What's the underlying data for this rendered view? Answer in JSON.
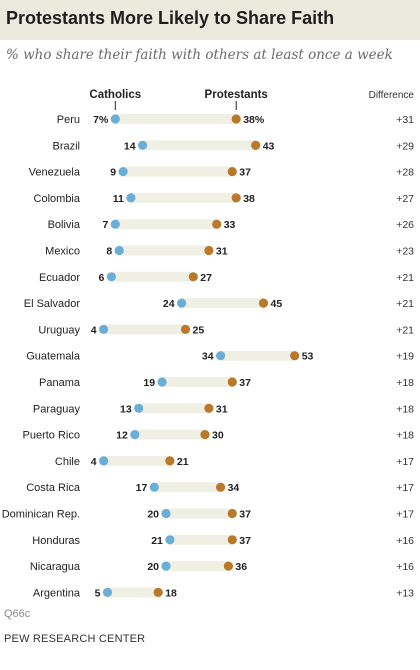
{
  "header": {
    "title": "Protestants More Likely to Share Faith",
    "subtitle": "% who share their faith with others at least once a week"
  },
  "footer": {
    "note": "Q66c",
    "source": "PEW RESEARCH CENTER"
  },
  "colors": {
    "catholics": "#6aaed8",
    "protestants": "#b9782a",
    "track": "#efefe3",
    "title_band": "#eceadd"
  },
  "chart_data": {
    "type": "dot",
    "title": "Protestants More Likely to Share Faith",
    "subtitle": "% who share their faith with others at least once a week",
    "legend": {
      "catholics": "Catholics",
      "protestants": "Protestants",
      "difference": "Difference"
    },
    "value_suffix_first_row": "%",
    "xlim": [
      0,
      60
    ],
    "categories": [
      "Peru",
      "Brazil",
      "Venezuela",
      "Colombia",
      "Bolivia",
      "Mexico",
      "Ecuador",
      "El Salvador",
      "Uruguay",
      "Guatemala",
      "Panama",
      "Paraguay",
      "Puerto Rico",
      "Chile",
      "Costa Rica",
      "Dominican Rep.",
      "Honduras",
      "Nicaragua",
      "Argentina"
    ],
    "series": [
      {
        "name": "Catholics",
        "values": [
          7,
          14,
          9,
          11,
          7,
          8,
          6,
          24,
          4,
          34,
          19,
          13,
          12,
          4,
          17,
          20,
          21,
          20,
          5
        ]
      },
      {
        "name": "Protestants",
        "values": [
          38,
          43,
          37,
          38,
          33,
          31,
          27,
          45,
          25,
          53,
          37,
          31,
          30,
          21,
          34,
          37,
          37,
          36,
          18
        ]
      }
    ],
    "difference": [
      "+31",
      "+29",
      "+28",
      "+27",
      "+26",
      "+23",
      "+21",
      "+21",
      "+21",
      "+19",
      "+18",
      "+18",
      "+18",
      "+17",
      "+17",
      "+17",
      "+16",
      "+16",
      "+13"
    ]
  }
}
